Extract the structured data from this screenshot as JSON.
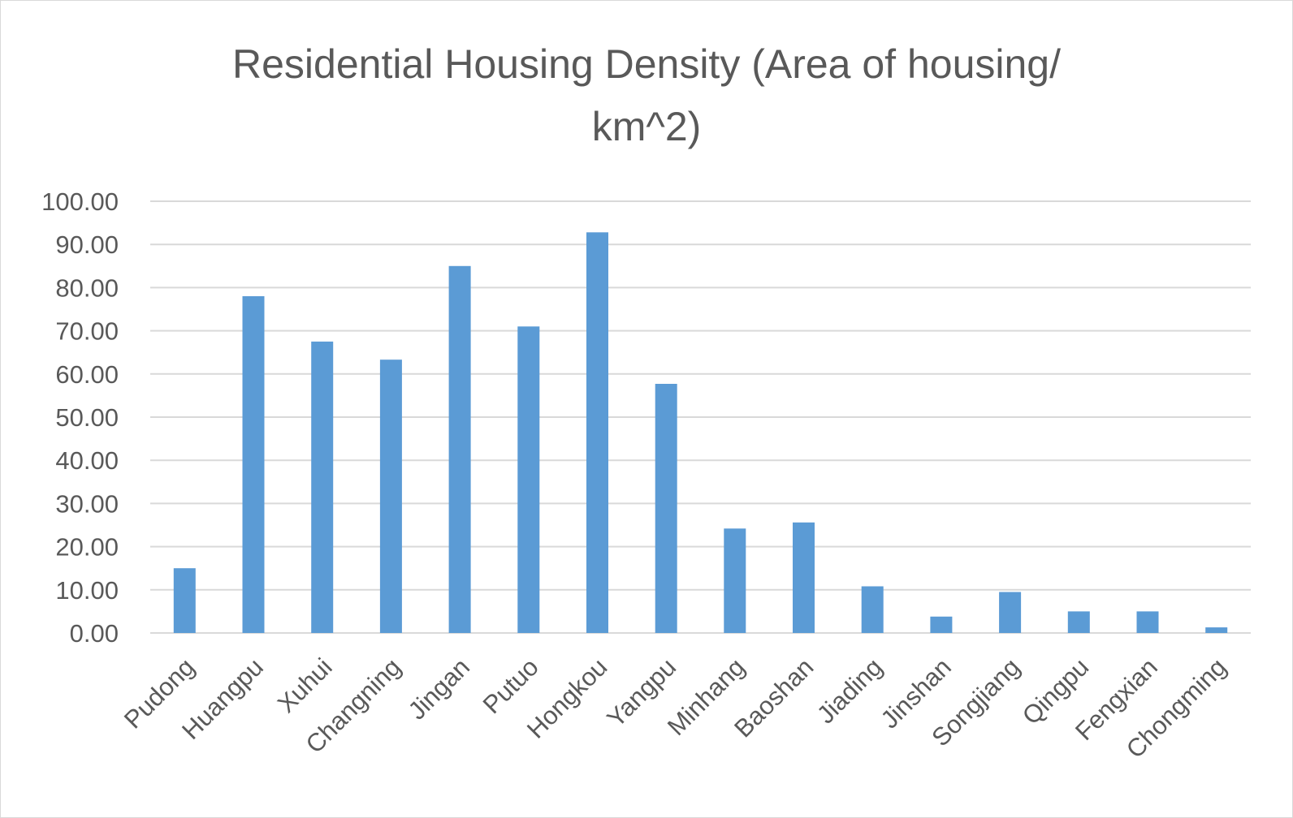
{
  "chart_data": {
    "type": "bar",
    "title_lines": [
      "Residential Housing Density (Area of housing/",
      "km^2)"
    ],
    "xlabel": "",
    "ylabel": "",
    "categories": [
      "Pudong",
      "Huangpu",
      "Xuhui",
      "Changning",
      "Jingan",
      "Putuo",
      "Hongkou",
      "Yangpu",
      "Minhang",
      "Baoshan",
      "Jiading",
      "Jinshan",
      "Songjiang",
      "Qingpu",
      "Fengxian",
      "Chongming"
    ],
    "values": [
      15.0,
      78.0,
      67.5,
      63.3,
      85.0,
      71.0,
      92.8,
      57.7,
      24.2,
      25.6,
      10.8,
      3.8,
      9.5,
      5.0,
      5.0,
      1.3
    ],
    "ylim": [
      0,
      100
    ],
    "yticks": [
      "0.00",
      "10.00",
      "20.00",
      "30.00",
      "40.00",
      "50.00",
      "60.00",
      "70.00",
      "80.00",
      "90.00",
      "100.00"
    ],
    "grid": true,
    "legend": "none",
    "bar_color": "#5b9bd5",
    "grid_color": "#d9d9d9",
    "text_color": "#595959"
  }
}
